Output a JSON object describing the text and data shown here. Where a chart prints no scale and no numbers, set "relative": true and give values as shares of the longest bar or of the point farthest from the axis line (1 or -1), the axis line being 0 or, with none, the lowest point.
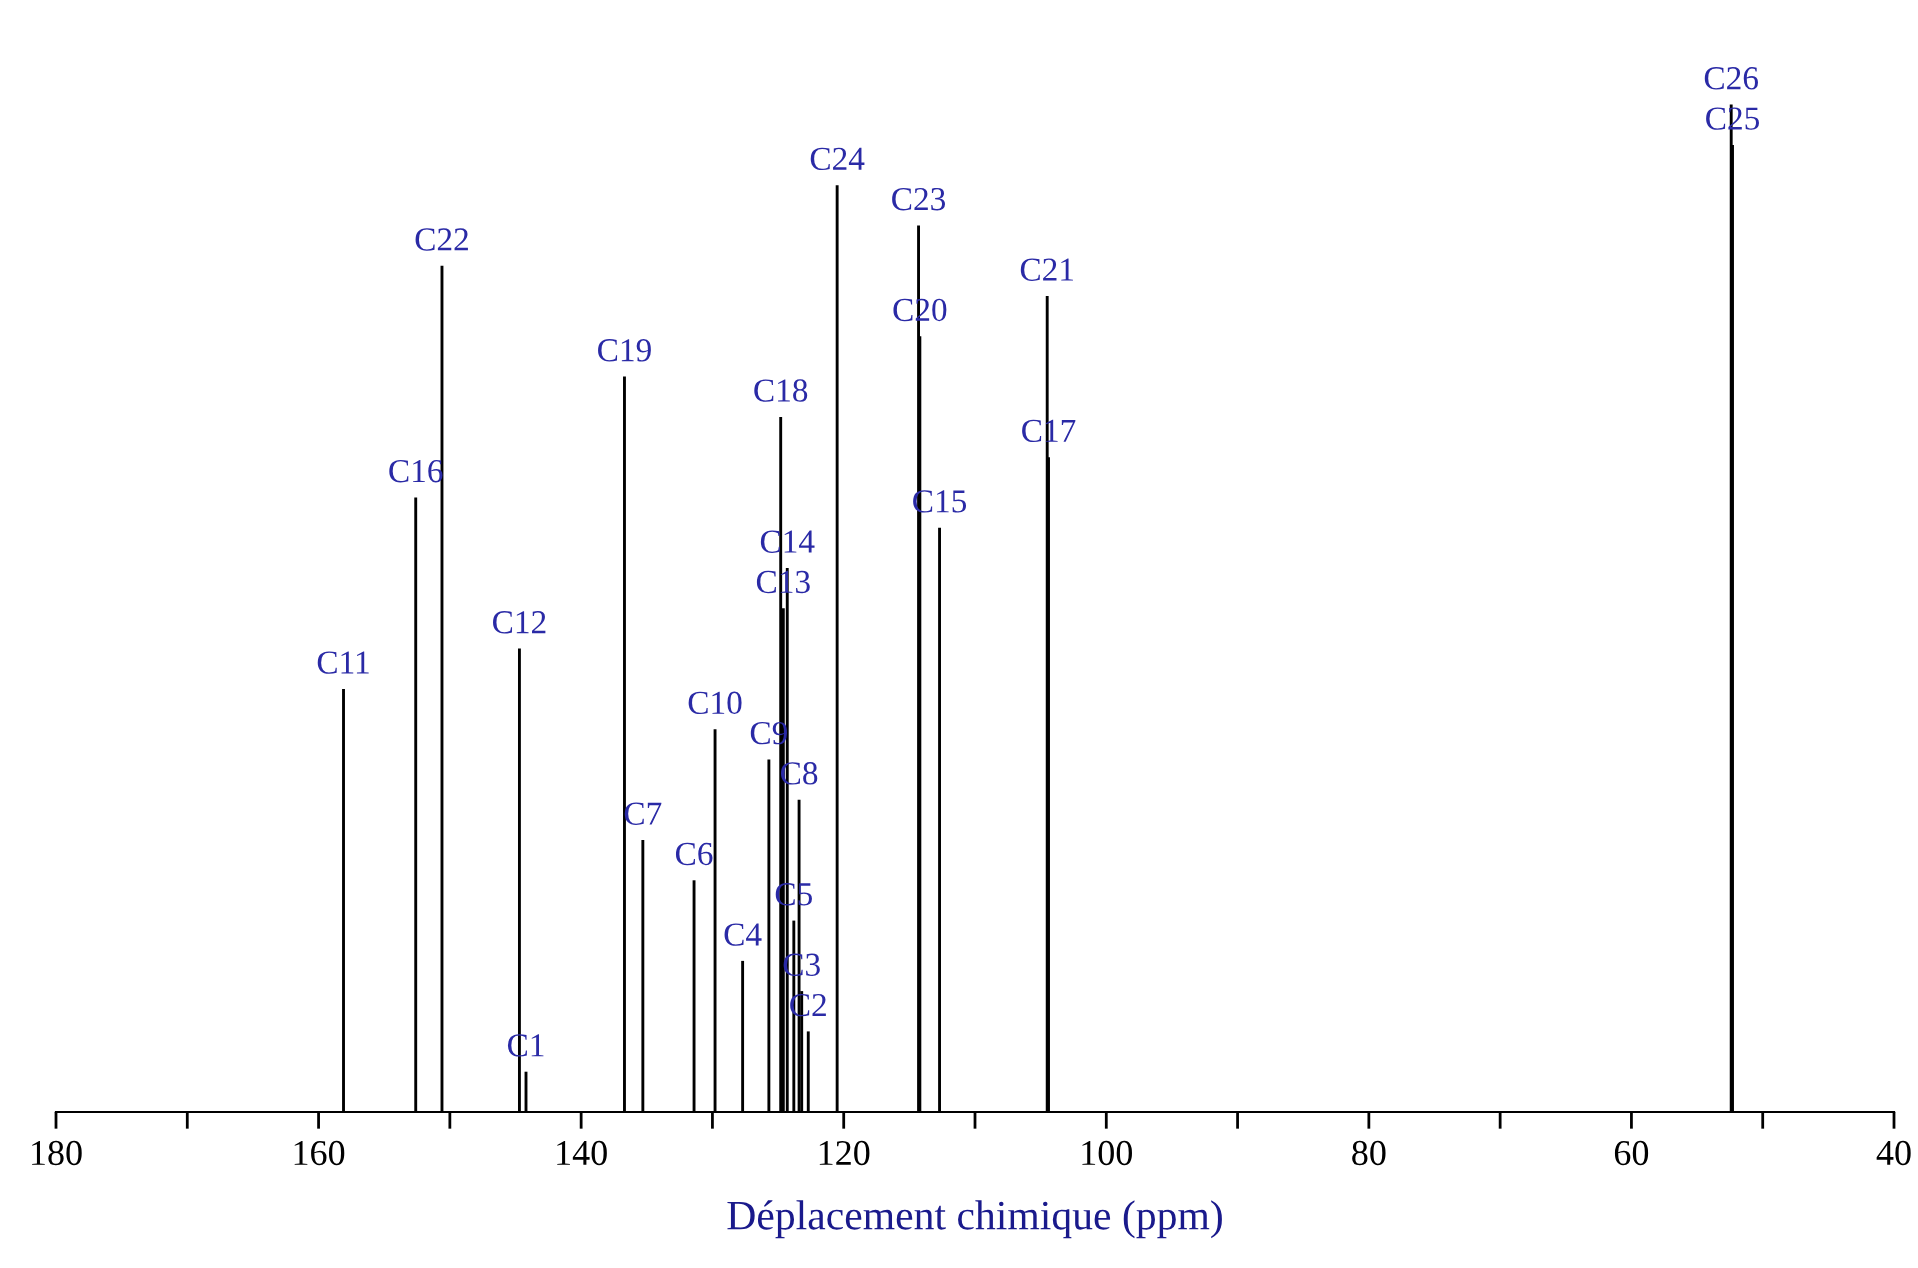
{
  "chart_data": {
    "type": "bar",
    "relative": true,
    "xlabel": "Déplacement chimique (ppm)",
    "xlim": [
      180,
      40
    ],
    "xticks": [
      180,
      {
        "value": 170,
        "label": null
      },
      160,
      {
        "value": 150,
        "label": null
      },
      140,
      {
        "value": 130,
        "label": null
      },
      120,
      {
        "value": 110,
        "label": null
      },
      100,
      {
        "value": 90,
        "label": null
      },
      80,
      {
        "value": 70,
        "label": null
      },
      60,
      {
        "value": 50,
        "label": null
      },
      40
    ],
    "x": [
      158.1,
      152.6,
      150.6,
      144.7,
      144.2,
      136.7,
      135.3,
      131.4,
      129.8,
      127.7,
      125.7,
      124.8,
      124.6,
      124.3,
      123.8,
      123.4,
      123.2,
      122.7,
      120.5,
      114.3,
      114.2,
      112.7,
      104.5,
      104.4,
      52.4,
      52.3
    ],
    "values": [
      0.42,
      0.61,
      0.84,
      0.46,
      0.04,
      0.73,
      0.27,
      0.23,
      0.38,
      0.15,
      0.35,
      0.69,
      0.5,
      0.54,
      0.19,
      0.31,
      0.12,
      0.08,
      0.92,
      0.88,
      0.77,
      0.58,
      0.81,
      0.65,
      1.0,
      0.96
    ],
    "color": "#000000",
    "annotations": [
      {
        "text": "C11",
        "x": 158.1,
        "y": 0.42
      },
      {
        "text": "C16",
        "x": 152.6,
        "y": 0.61
      },
      {
        "text": "C22",
        "x": 150.6,
        "y": 0.84
      },
      {
        "text": "C12",
        "x": 144.7,
        "y": 0.46
      },
      {
        "text": "C1",
        "x": 144.2,
        "y": 0.04
      },
      {
        "text": "C19",
        "x": 136.7,
        "y": 0.73
      },
      {
        "text": "C7",
        "x": 135.3,
        "y": 0.27
      },
      {
        "text": "C6",
        "x": 131.4,
        "y": 0.23
      },
      {
        "text": "C10",
        "x": 129.8,
        "y": 0.38
      },
      {
        "text": "C4",
        "x": 127.7,
        "y": 0.15
      },
      {
        "text": "C9",
        "x": 125.7,
        "y": 0.35
      },
      {
        "text": "C18",
        "x": 124.8,
        "y": 0.69
      },
      {
        "text": "C13",
        "x": 124.6,
        "y": 0.5
      },
      {
        "text": "C14",
        "x": 124.3,
        "y": 0.54
      },
      {
        "text": "C5",
        "x": 123.8,
        "y": 0.19
      },
      {
        "text": "C8",
        "x": 123.4,
        "y": 0.31
      },
      {
        "text": "C3",
        "x": 123.2,
        "y": 0.12
      },
      {
        "text": "C2",
        "x": 122.7,
        "y": 0.08
      },
      {
        "text": "C24",
        "x": 120.5,
        "y": 0.92
      },
      {
        "text": "C23",
        "x": 114.3,
        "y": 0.88
      },
      {
        "text": "C20",
        "x": 114.2,
        "y": 0.77
      },
      {
        "text": "C15",
        "x": 112.7,
        "y": 0.58
      },
      {
        "text": "C21",
        "x": 104.5,
        "y": 0.81
      },
      {
        "text": "C17",
        "x": 104.4,
        "y": 0.65
      },
      {
        "text": "C26",
        "x": 52.4,
        "y": 1.0
      },
      {
        "text": "C25",
        "x": 52.3,
        "y": 0.96
      }
    ]
  }
}
